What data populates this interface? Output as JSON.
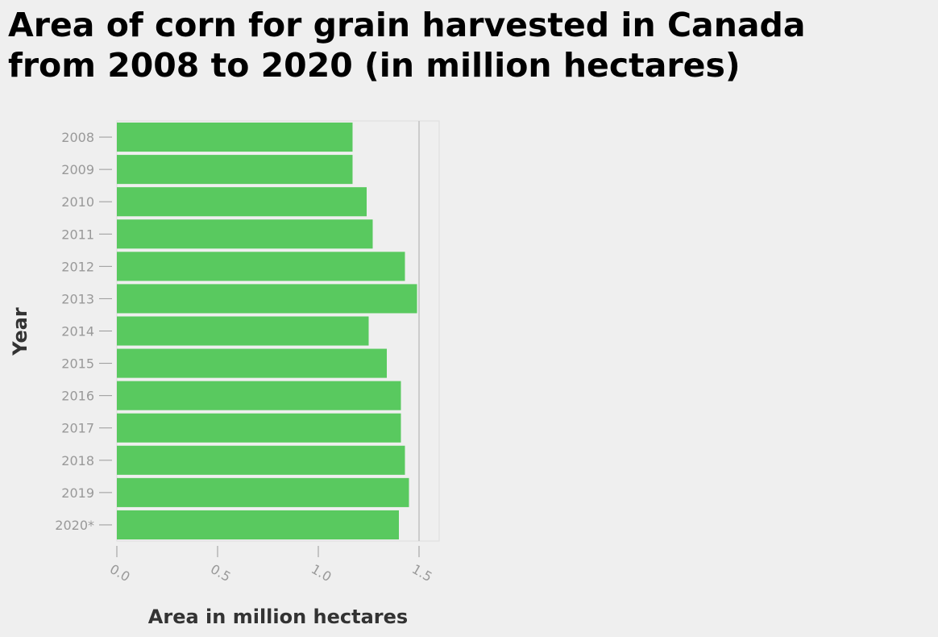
{
  "chart_data": {
    "type": "bar",
    "orientation": "horizontal",
    "title_lines": [
      "Area of corn for grain harvested in Canada",
      "from 2008 to 2020 (in million hectares)"
    ],
    "xlabel": "Area in million hectares",
    "ylabel": "Year",
    "categories": [
      "2008",
      "2009",
      "2010",
      "2011",
      "2012",
      "2013",
      "2014",
      "2015",
      "2016",
      "2017",
      "2018",
      "2019",
      "2020*"
    ],
    "values": [
      1.17,
      1.17,
      1.24,
      1.27,
      1.43,
      1.49,
      1.25,
      1.34,
      1.41,
      1.41,
      1.43,
      1.45,
      1.4
    ],
    "x_ticks": [
      "0.0",
      "0.5",
      "1.0",
      "1.5"
    ],
    "x_tick_values": [
      0,
      0.5,
      1.0,
      1.5
    ],
    "xlim": [
      0,
      1.6
    ],
    "grid": "vertical line at 1.5",
    "bar_color": "#59c95f",
    "legend": "none"
  }
}
